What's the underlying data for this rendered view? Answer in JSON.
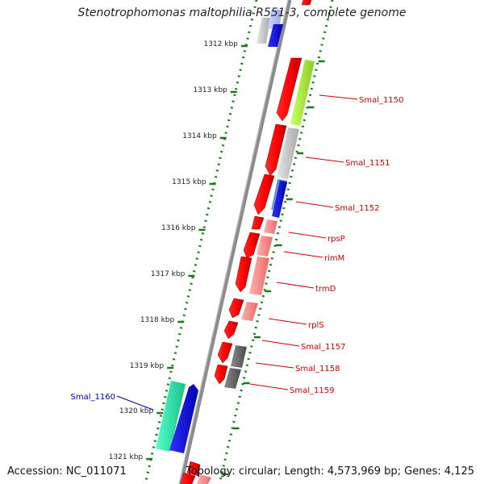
{
  "title": "Stenotrophomonas maltophilia R551-3, complete genome",
  "footer": {
    "accession": "Accession: NC_011071",
    "topology": "Topology: circular; Length: 4,573,969 bp; Genes: 4,125"
  },
  "colors": {
    "ruler_dots": "#1a7a1a",
    "axis": "#888888",
    "label_red": "#cc0000",
    "label_blue": "#0000aa"
  },
  "ticks": [
    "1312 kbp",
    "1313 kbp",
    "1314 kbp",
    "1315 kbp",
    "1316 kbp",
    "1317 kbp",
    "1318 kbp",
    "1319 kbp",
    "1320 kbp",
    "1321 kbp"
  ],
  "genes": [
    {
      "label": "Smal_1150",
      "color": "#cc0000"
    },
    {
      "label": "Smal_1151",
      "color": "#cc0000"
    },
    {
      "label": "Smal_1152",
      "color": "#cc0000"
    },
    {
      "label": "rpsP",
      "color": "#cc0000"
    },
    {
      "label": "rimM",
      "color": "#cc0000"
    },
    {
      "label": "trmD",
      "color": "#cc0000"
    },
    {
      "label": "rplS",
      "color": "#cc0000"
    },
    {
      "label": "Smal_1157",
      "color": "#cc0000"
    },
    {
      "label": "Smal_1158",
      "color": "#cc0000"
    },
    {
      "label": "Smal_1159",
      "color": "#cc0000"
    },
    {
      "label": "Smal_1160",
      "color": "#0000aa"
    }
  ]
}
